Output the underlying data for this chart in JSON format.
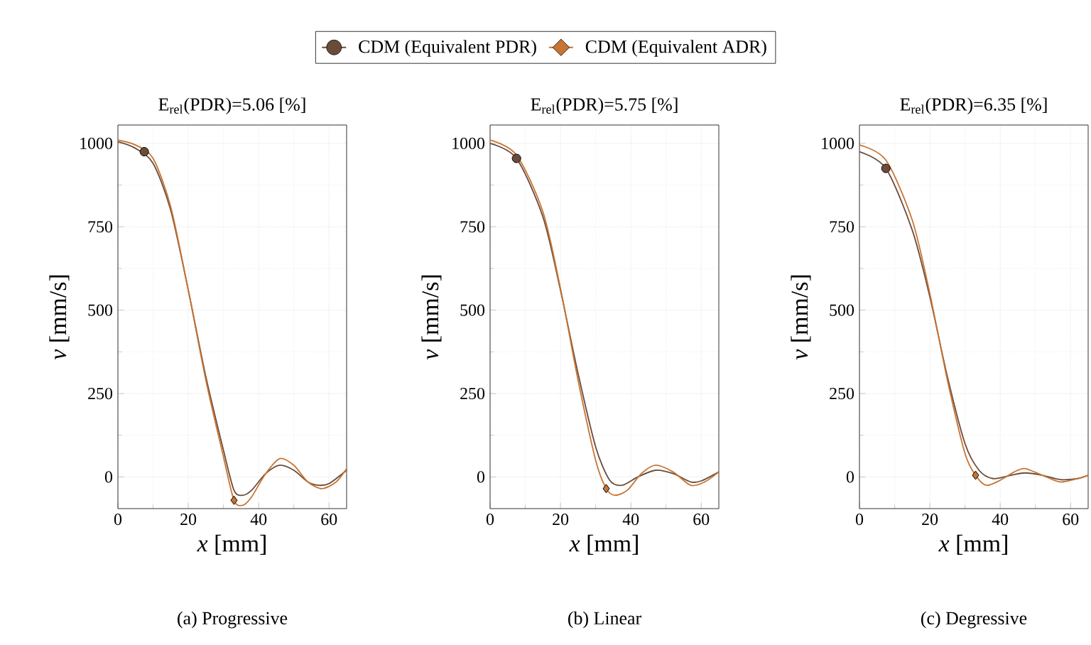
{
  "chart_data": [
    {
      "type": "line",
      "title": "E$_{rel}$(PDR)=5.06 [%]",
      "xlabel": "*x*  [mm]",
      "ylabel": "*v*  [mm/s]",
      "xlim": [
        0,
        65
      ],
      "ylim": [
        -95,
        1055
      ],
      "xticks": [
        0,
        20,
        40,
        60
      ],
      "yticks": [
        0,
        250,
        500,
        750,
        1000
      ],
      "grid": true,
      "legend": "top",
      "annotations": [
        "(a) Progressive"
      ],
      "series": [
        {
          "color": "#6b4c3b",
          "x": [
            0,
            5,
            10,
            15,
            20,
            25,
            30,
            33,
            35.5,
            38,
            42,
            46,
            50,
            54,
            57,
            60,
            65
          ],
          "values": [
            1005,
            985,
            940,
            800,
            560,
            300,
            80,
            -40,
            -55,
            -40,
            10,
            35,
            20,
            -15,
            -25,
            -20,
            20
          ]
        },
        {
          "color": "#c87533",
          "x": [
            0,
            5,
            10,
            15,
            20,
            25,
            30,
            33,
            35.5,
            38,
            42,
            46,
            50,
            54,
            58,
            62,
            65
          ],
          "values": [
            1010,
            995,
            955,
            810,
            560,
            290,
            60,
            -70,
            -85,
            -60,
            10,
            55,
            35,
            -15,
            -35,
            -15,
            25
          ]
        },
        {
          "type": "scatter",
          "name": "CDM (Equivalent PDR)",
          "color": "#6b4c3b",
          "marker": "circle",
          "x": [
            7.5
          ],
          "values": [
            975
          ]
        },
        {
          "type": "scatter",
          "name": "CDM (Equivalent ADR)",
          "color": "#c87533",
          "marker": "diamond",
          "x": [
            33
          ],
          "values": [
            -70
          ]
        }
      ]
    },
    {
      "type": "line",
      "title": "E$_{rel}$(PDR)=5.75 [%]",
      "xlabel": "*x*  [mm]",
      "ylabel": "*v*  [mm/s]",
      "xlim": [
        0,
        65
      ],
      "ylim": [
        -95,
        1055
      ],
      "xticks": [
        0,
        20,
        40,
        60
      ],
      "yticks": [
        0,
        250,
        500,
        750,
        1000
      ],
      "grid": true,
      "annotations": [
        "(b) Linear"
      ],
      "series": [
        {
          "color": "#6b4c3b",
          "x": [
            0,
            7.5,
            15,
            20,
            25,
            30,
            34,
            37.5,
            42,
            47,
            52,
            57,
            60,
            65
          ],
          "values": [
            1000,
            955,
            780,
            560,
            310,
            90,
            -10,
            -25,
            0,
            20,
            10,
            -15,
            -12,
            15
          ]
        },
        {
          "color": "#c87533",
          "x": [
            0,
            7.5,
            15,
            20,
            25,
            30,
            33,
            35.5,
            39,
            43,
            47,
            52,
            57,
            61,
            65
          ],
          "values": [
            1010,
            965,
            795,
            565,
            290,
            50,
            -35,
            -55,
            -40,
            10,
            35,
            15,
            -25,
            -15,
            15
          ]
        },
        {
          "type": "scatter",
          "color": "#6b4c3b",
          "marker": "circle",
          "x": [
            7.5
          ],
          "values": [
            955
          ]
        },
        {
          "type": "scatter",
          "color": "#c87533",
          "marker": "diamond",
          "x": [
            33
          ],
          "values": [
            -35
          ]
        }
      ]
    },
    {
      "type": "line",
      "title": "E$_{rel}$(PDR)=6.35 [%]",
      "xlabel": "*x*  [mm]",
      "ylabel": "*v*  [mm/s]",
      "xlim": [
        0,
        65
      ],
      "ylim": [
        -95,
        1055
      ],
      "xticks": [
        0,
        20,
        40,
        60
      ],
      "yticks": [
        0,
        250,
        500,
        750,
        1000
      ],
      "grid": true,
      "annotations": [
        "(c) Degressive"
      ],
      "series": [
        {
          "color": "#6b4c3b",
          "x": [
            0,
            7.5,
            15,
            20,
            25,
            30,
            34,
            38,
            43,
            47,
            52,
            57,
            62,
            65
          ],
          "values": [
            975,
            925,
            740,
            540,
            300,
            100,
            20,
            -5,
            5,
            12,
            5,
            -8,
            -5,
            5
          ]
        },
        {
          "color": "#c87533",
          "x": [
            0,
            7.5,
            15,
            20,
            25,
            30,
            33,
            36,
            40,
            44,
            47,
            52,
            57,
            62,
            65
          ],
          "values": [
            995,
            950,
            770,
            550,
            290,
            70,
            5,
            -25,
            -10,
            15,
            25,
            5,
            -15,
            -5,
            5
          ]
        },
        {
          "type": "scatter",
          "color": "#6b4c3b",
          "marker": "circle",
          "x": [
            7.5
          ],
          "values": [
            925
          ]
        },
        {
          "type": "scatter",
          "color": "#c87533",
          "marker": "diamond",
          "x": [
            33
          ],
          "values": [
            5
          ]
        }
      ]
    }
  ]
}
